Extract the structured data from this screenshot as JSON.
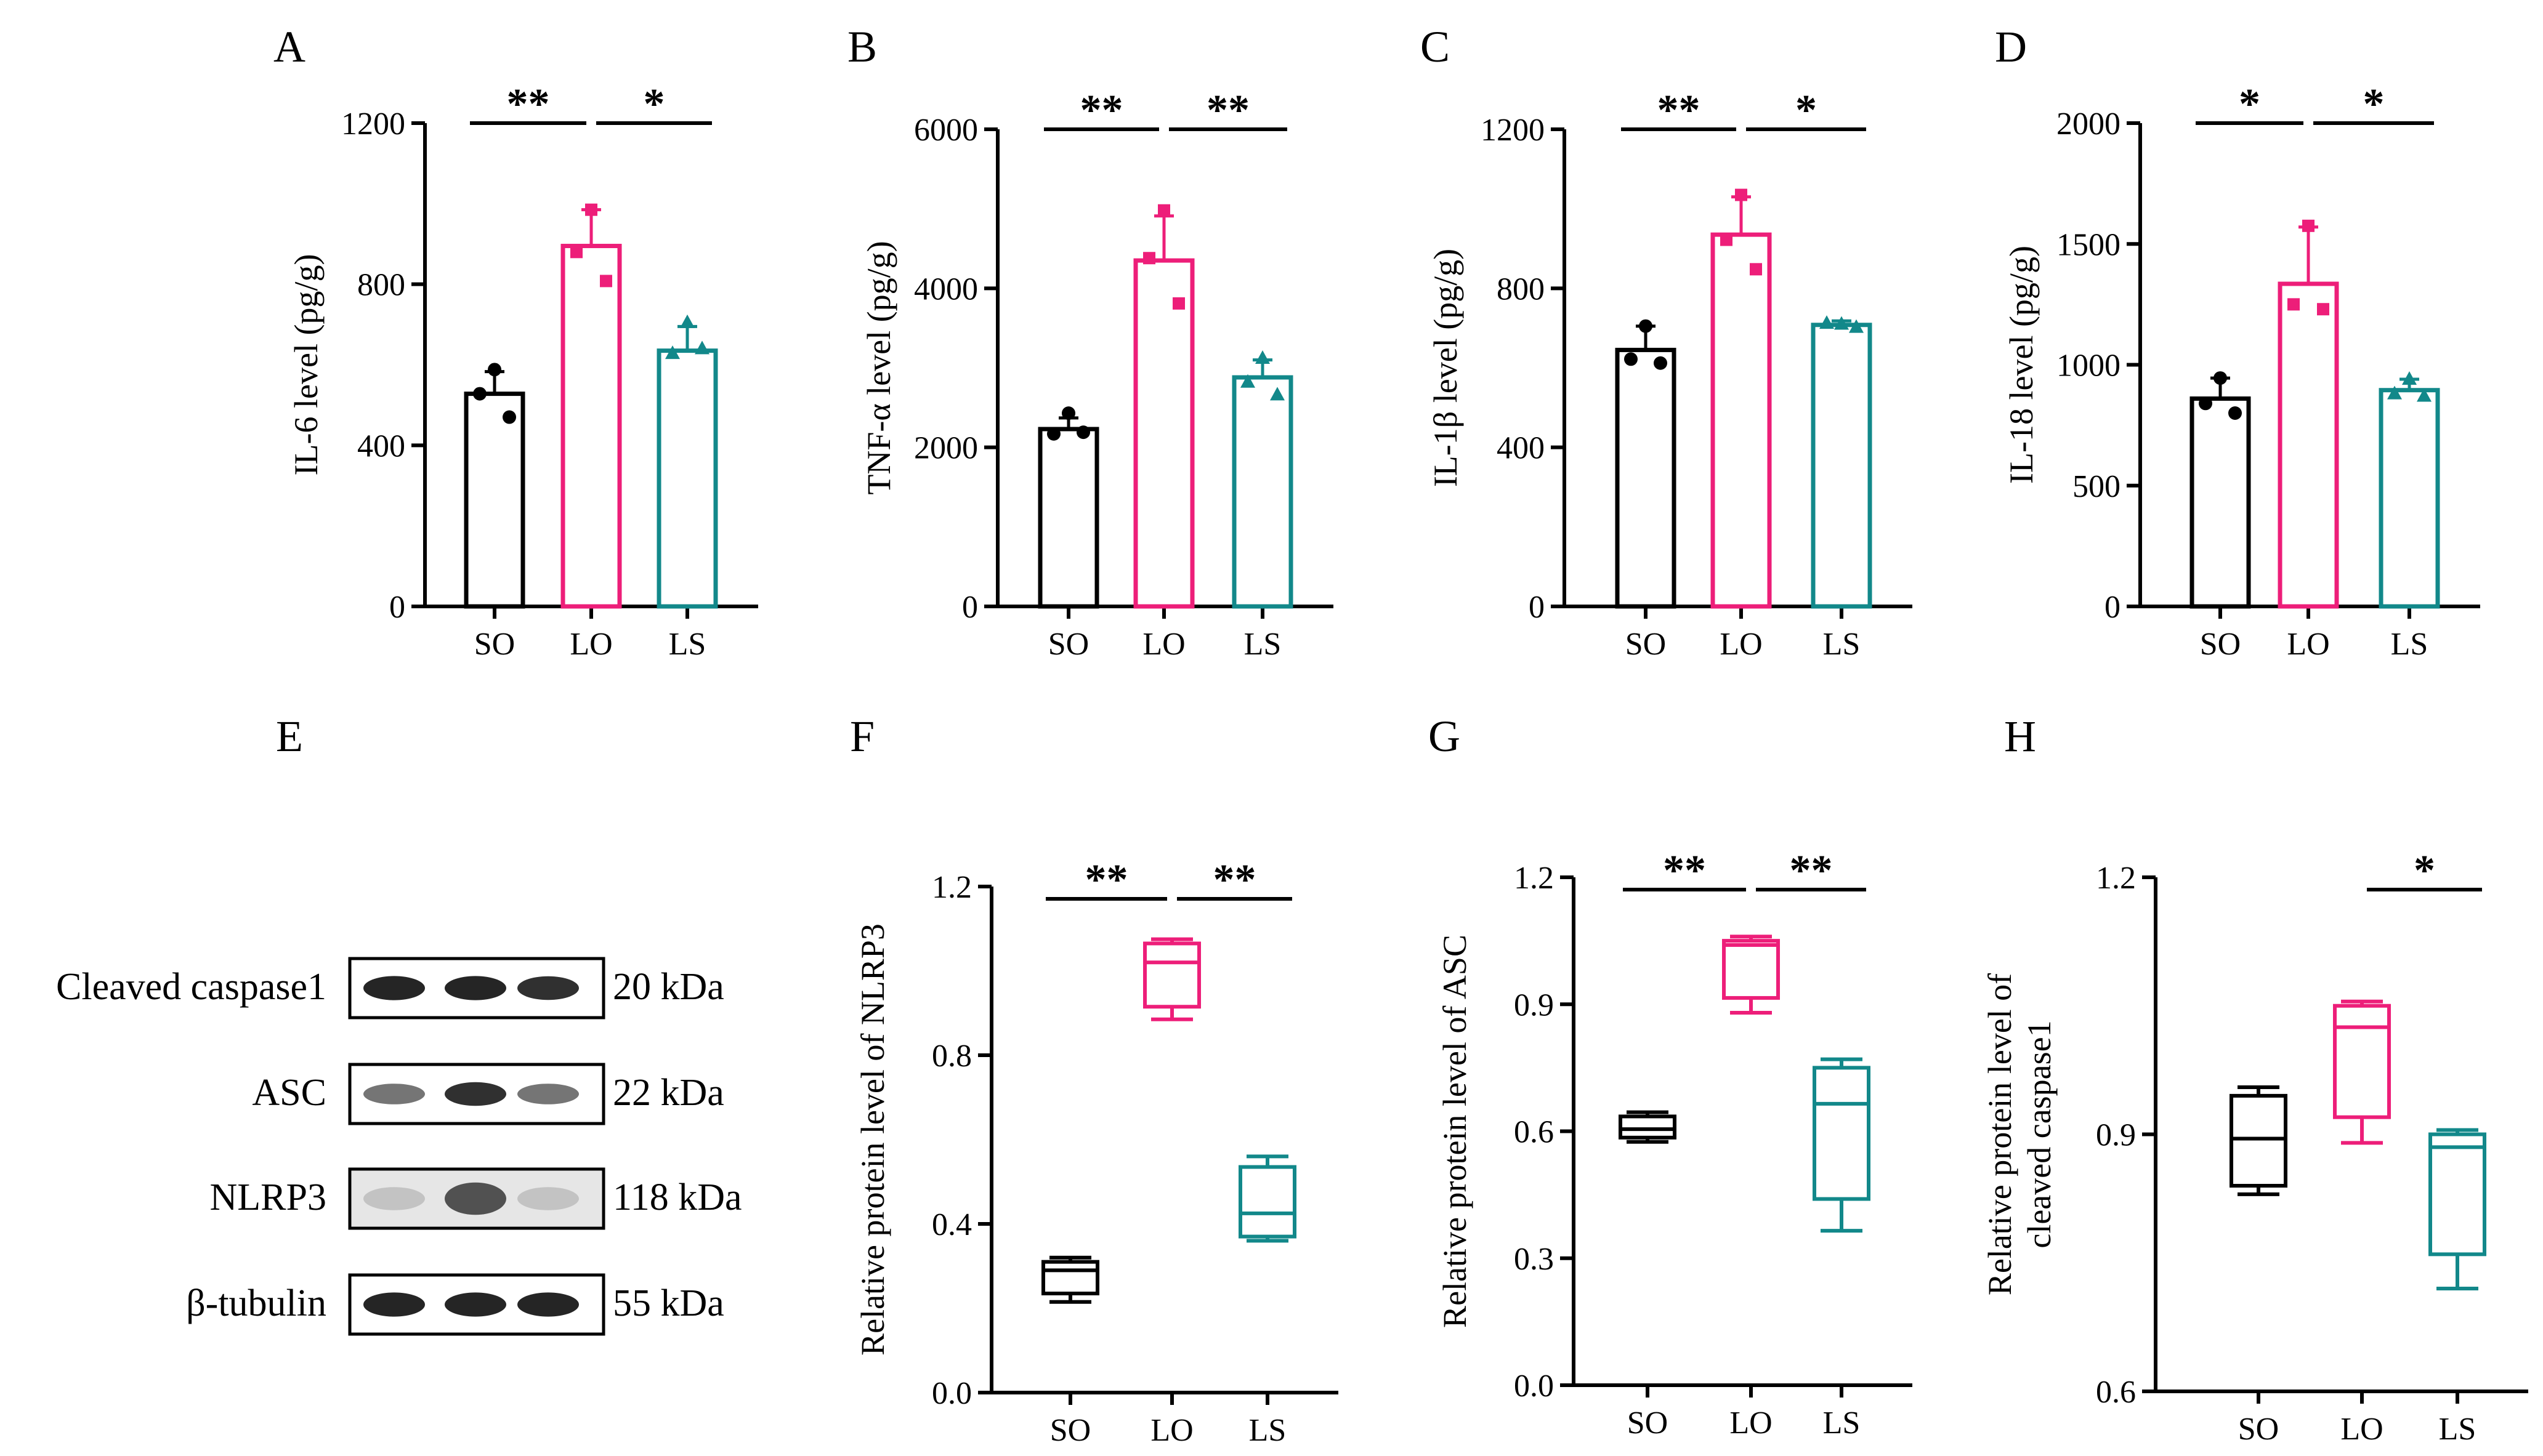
{
  "colors": {
    "SO": "#000000",
    "LO": "#ed1e79",
    "LS": "#12888a"
  },
  "chart_data": [
    {
      "panel": "A",
      "type": "bar",
      "categories": [
        "SO",
        "LO",
        "LS"
      ],
      "ylabel": "IL-6 level (pg/g)",
      "ylim": [
        0,
        1200
      ],
      "yticks": [
        0,
        400,
        800,
        1200
      ],
      "values": [
        528,
        895,
        635
      ],
      "errors": [
        55,
        90,
        60
      ],
      "points": [
        [
          588,
          528,
          470
        ],
        [
          985,
          880,
          808
        ],
        [
          705,
          628,
          640
        ]
      ],
      "markers": [
        "circle",
        "square",
        "triangle"
      ],
      "significance": [
        {
          "from": 0,
          "to": 1,
          "label": "**"
        },
        {
          "from": 1,
          "to": 2,
          "label": "*"
        }
      ]
    },
    {
      "panel": "B",
      "type": "bar",
      "categories": [
        "SO",
        "LO",
        "LS"
      ],
      "ylabel": "TNF-α level (pg/g)",
      "ylim": [
        0,
        6000
      ],
      "yticks": [
        0,
        2000,
        4000,
        6000
      ],
      "values": [
        2230,
        4350,
        2880
      ],
      "errors": [
        140,
        560,
        220
      ],
      "points": [
        [
          2430,
          2170,
          2190
        ],
        [
          4980,
          4380,
          3810
        ],
        [
          3120,
          2820,
          2660
        ]
      ],
      "markers": [
        "circle",
        "square",
        "triangle"
      ],
      "significance": [
        {
          "from": 0,
          "to": 1,
          "label": "**"
        },
        {
          "from": 1,
          "to": 2,
          "label": "**"
        }
      ]
    },
    {
      "panel": "C",
      "type": "bar",
      "categories": [
        "SO",
        "LO",
        "LS"
      ],
      "ylabel": "IL-1β level (pg/g)",
      "ylim": [
        0,
        1200
      ],
      "yticks": [
        0,
        400,
        800,
        1200
      ],
      "values": [
        645,
        935,
        708
      ],
      "errors": [
        60,
        95,
        10
      ],
      "points": [
        [
          705,
          622,
          612
        ],
        [
          1035,
          922,
          848
        ],
        [
          710,
          712,
          702
        ]
      ],
      "markers": [
        "circle",
        "square",
        "triangle"
      ],
      "significance": [
        {
          "from": 0,
          "to": 1,
          "label": "**"
        },
        {
          "from": 1,
          "to": 2,
          "label": "*"
        }
      ]
    },
    {
      "panel": "D",
      "type": "bar",
      "categories": [
        "SO",
        "LO",
        "LS"
      ],
      "ylabel": "IL-18 level (pg/g)",
      "ylim": [
        0,
        2000
      ],
      "yticks": [
        0,
        500,
        1000,
        1500,
        2000
      ],
      "values": [
        860,
        1335,
        895
      ],
      "errors": [
        85,
        235,
        45
      ],
      "points": [
        [
          945,
          840,
          800
        ],
        [
          1575,
          1250,
          1230
        ],
        [
          940,
          880,
          870
        ]
      ],
      "markers": [
        "circle",
        "square",
        "triangle"
      ],
      "significance": [
        {
          "from": 0,
          "to": 1,
          "label": "*"
        },
        {
          "from": 1,
          "to": 2,
          "label": "*"
        }
      ]
    },
    {
      "panel": "F",
      "type": "box",
      "categories": [
        "SO",
        "LO",
        "LS"
      ],
      "ylabel": "Relative protein level of  NLRP3",
      "ylim": [
        0,
        1.2
      ],
      "yticks": [
        "0.0",
        "0.4",
        "0.8",
        "1.2"
      ],
      "boxes": [
        [
          0.215,
          0.235,
          0.29,
          0.31,
          0.32
        ],
        [
          0.885,
          0.915,
          1.02,
          1.065,
          1.075
        ],
        [
          0.36,
          0.37,
          0.425,
          0.535,
          0.56
        ]
      ],
      "significance": [
        {
          "from": 0,
          "to": 1,
          "label": "**"
        },
        {
          "from": 1,
          "to": 2,
          "label": "**"
        }
      ]
    },
    {
      "panel": "G",
      "type": "box",
      "categories": [
        "SO",
        "LO",
        "LS"
      ],
      "ylabel": "Relative protein level of ASC",
      "ylim": [
        0,
        1.2
      ],
      "yticks": [
        "0.0",
        "0.3",
        "0.6",
        "0.9",
        "1.2"
      ],
      "boxes": [
        [
          0.575,
          0.585,
          0.605,
          0.635,
          0.645
        ],
        [
          0.88,
          0.915,
          1.04,
          1.05,
          1.06
        ],
        [
          0.365,
          0.44,
          0.665,
          0.75,
          0.77
        ]
      ],
      "significance": [
        {
          "from": 0,
          "to": 1,
          "label": "**"
        },
        {
          "from": 1,
          "to": 2,
          "label": "**"
        }
      ]
    },
    {
      "panel": "H",
      "type": "box",
      "categories": [
        "SO",
        "LO",
        "LS"
      ],
      "ylabel": [
        "Relative protein level of",
        "cleaved caspase1"
      ],
      "ylim": [
        0.6,
        1.2
      ],
      "yticks": [
        "0.6",
        "0.9",
        "1.2"
      ],
      "boxes": [
        [
          0.83,
          0.84,
          0.895,
          0.945,
          0.955
        ],
        [
          0.89,
          0.92,
          1.025,
          1.05,
          1.055
        ],
        [
          0.72,
          0.76,
          0.885,
          0.9,
          0.905
        ]
      ],
      "significance": [
        {
          "from": 1,
          "to": 2,
          "label": "*"
        }
      ]
    }
  ],
  "blot": {
    "panel": "E",
    "bands": [
      {
        "protein": "Cleaved caspase1",
        "size": "20 kDa",
        "intensity": [
          0.95,
          0.95,
          0.9
        ]
      },
      {
        "protein": "ASC",
        "size": "22 kDa",
        "intensity": [
          0.6,
          0.9,
          0.6
        ]
      },
      {
        "protein": "NLRP3",
        "size": "118 kDa",
        "intensity": [
          0.25,
          0.75,
          0.25
        ]
      },
      {
        "protein": "β-tubulin",
        "size": "55 kDa",
        "intensity": [
          0.95,
          0.95,
          0.95
        ]
      }
    ]
  }
}
